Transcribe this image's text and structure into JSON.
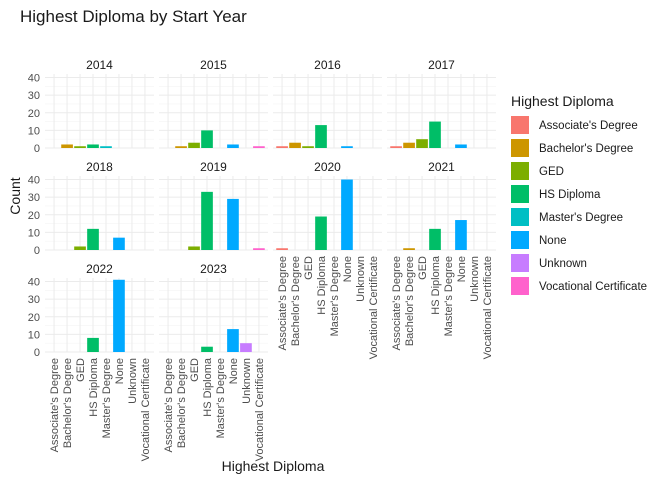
{
  "chart_data": {
    "type": "bar",
    "title": "Highest Diploma by Start Year",
    "xlabel": "Highest Diploma",
    "ylabel": "Count",
    "ylim": [
      0,
      42
    ],
    "yticks": [
      0,
      10,
      20,
      30,
      40
    ],
    "grid": true,
    "legend_position": "right",
    "legend_title": "Highest Diploma",
    "categories": [
      "Associate's Degree",
      "Bachelor's Degree",
      "GED",
      "HS Diploma",
      "Master's Degree",
      "None",
      "Unknown",
      "Vocational Certificate"
    ],
    "colors": [
      "#F8766D",
      "#CD9600",
      "#7CAE00",
      "#00BE67",
      "#00BFC4",
      "#00A9FF",
      "#C77CFF",
      "#FF61CC"
    ],
    "facets": [
      {
        "label": "2014",
        "values": [
          0,
          2,
          1,
          2,
          1,
          0,
          0,
          0
        ]
      },
      {
        "label": "2015",
        "values": [
          0,
          1,
          3,
          10,
          0,
          2,
          0,
          1
        ]
      },
      {
        "label": "2016",
        "values": [
          1,
          3,
          1,
          13,
          0,
          1,
          0,
          0
        ]
      },
      {
        "label": "2017",
        "values": [
          1,
          3,
          5,
          15,
          0,
          2,
          0,
          0
        ]
      },
      {
        "label": "2018",
        "values": [
          0,
          0,
          2,
          12,
          0,
          7,
          0,
          0
        ]
      },
      {
        "label": "2019",
        "values": [
          0,
          0,
          2,
          33,
          0,
          29,
          0,
          1
        ]
      },
      {
        "label": "2020",
        "values": [
          1,
          0,
          0,
          19,
          0,
          40,
          0,
          0
        ]
      },
      {
        "label": "2021",
        "values": [
          0,
          1,
          0,
          12,
          0,
          17,
          0,
          0
        ]
      },
      {
        "label": "2022",
        "values": [
          0,
          0,
          0,
          8,
          0,
          41,
          0,
          0
        ]
      },
      {
        "label": "2023",
        "values": [
          0,
          0,
          0,
          3,
          0,
          13,
          5,
          0
        ]
      }
    ]
  }
}
